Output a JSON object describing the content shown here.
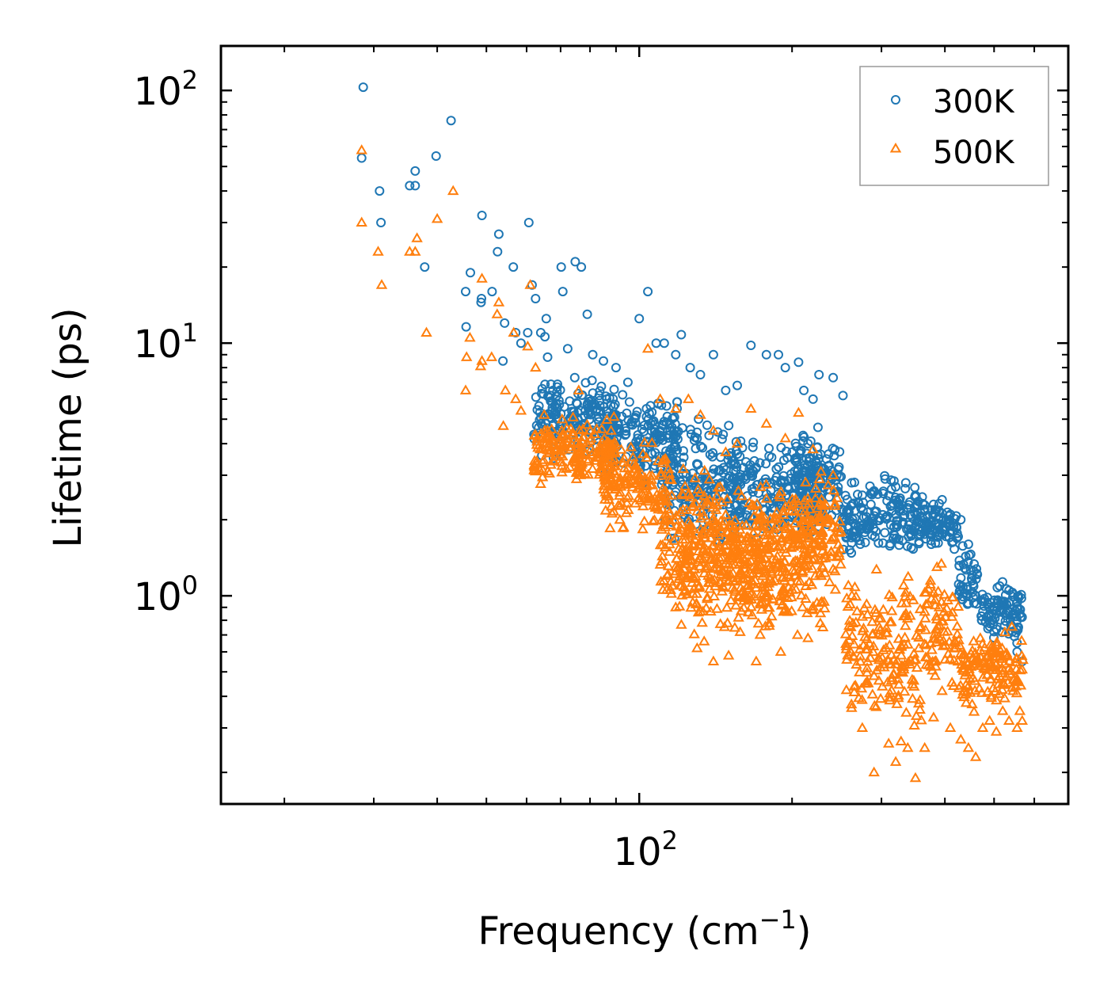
{
  "chart_data": {
    "type": "scatter",
    "xscale": "log",
    "yscale": "log",
    "xlabel": "Frequency (cm",
    "xlabel_sup": "−1",
    "xlabel_close": ")",
    "ylabel": "Lifetime (ps)",
    "xlim": [
      15,
      700
    ],
    "ylim": [
      0.15,
      150
    ],
    "xticks": [
      {
        "value": 100,
        "base": "10",
        "exp": "2"
      }
    ],
    "yticks": [
      {
        "value": 1,
        "base": "10",
        "exp": "0"
      },
      {
        "value": 10,
        "base": "10",
        "exp": "1"
      },
      {
        "value": 100,
        "base": "10",
        "exp": "2"
      }
    ],
    "legend_position": "top-right",
    "series": [
      {
        "name": "300K",
        "marker": "circle",
        "color": "#1f77b4",
        "points": [
          [
            28.6,
            103
          ],
          [
            28.4,
            54
          ],
          [
            30.8,
            40
          ],
          [
            31,
            30
          ],
          [
            35.3,
            42
          ],
          [
            36.2,
            42
          ],
          [
            36.2,
            48
          ],
          [
            37.8,
            20
          ],
          [
            39.8,
            55
          ],
          [
            42.6,
            76
          ],
          [
            45.5,
            16
          ],
          [
            45.6,
            11.6
          ],
          [
            46.5,
            19
          ],
          [
            48.8,
            14.5
          ],
          [
            48.9,
            15
          ],
          [
            49,
            32
          ],
          [
            51.3,
            16
          ],
          [
            52.6,
            23
          ],
          [
            52.9,
            27
          ],
          [
            53.9,
            8.5
          ],
          [
            54.3,
            12
          ],
          [
            56.5,
            20
          ],
          [
            57.1,
            11
          ],
          [
            58.5,
            10
          ],
          [
            60.3,
            11
          ],
          [
            60.6,
            30
          ],
          [
            61.5,
            17
          ],
          [
            62.5,
            15
          ],
          [
            64,
            11
          ],
          [
            65.2,
            10.6
          ],
          [
            65.6,
            12.5
          ],
          [
            66,
            8.8
          ],
          [
            67.6,
            6.5
          ],
          [
            70.2,
            20
          ],
          [
            70.7,
            16
          ],
          [
            72.3,
            9.5
          ],
          [
            74.8,
            21
          ],
          [
            76.9,
            20
          ],
          [
            79,
            13
          ],
          [
            81,
            9
          ],
          [
            85,
            8.5
          ],
          [
            90,
            8
          ],
          [
            95,
            7
          ],
          [
            100,
            12.5
          ],
          [
            104,
            16
          ],
          [
            108,
            10
          ],
          [
            112,
            10
          ],
          [
            118,
            9
          ],
          [
            121,
            10.8
          ],
          [
            126,
            8
          ],
          [
            132,
            7.5
          ],
          [
            140,
            9
          ],
          [
            148,
            6.5
          ],
          [
            156,
            6.8
          ],
          [
            166,
            9.8
          ],
          [
            178,
            9
          ],
          [
            188,
            9
          ],
          [
            194,
            8
          ],
          [
            206,
            8.4
          ],
          [
            211,
            6.5
          ],
          [
            220,
            6
          ],
          [
            226,
            7.5
          ],
          [
            241,
            7.3
          ],
          [
            252,
            6.2
          ],
          [
            90,
            5.2
          ],
          [
            110,
            4.5
          ],
          [
            130,
            4.2
          ],
          [
            150,
            3.6
          ],
          [
            170,
            3.2
          ],
          [
            190,
            2.8
          ],
          [
            215,
            4
          ],
          [
            230,
            3.2
          ],
          [
            245,
            3
          ],
          [
            262,
            2.8
          ],
          [
            275,
            2.5
          ],
          [
            290,
            2.6
          ],
          [
            305,
            2.9
          ],
          [
            320,
            2.7
          ],
          [
            335,
            2.8
          ],
          [
            350,
            2.5
          ],
          [
            365,
            2.2
          ],
          [
            380,
            2.3
          ],
          [
            395,
            2.4
          ],
          [
            410,
            2.1
          ],
          [
            430,
            2.0
          ],
          [
            445,
            1.6
          ],
          [
            460,
            1.0
          ],
          [
            475,
            0.95
          ],
          [
            490,
            0.9
          ],
          [
            505,
            0.85
          ],
          [
            520,
            0.95
          ],
          [
            535,
            1.05
          ],
          [
            545,
            0.75
          ],
          [
            555,
            0.6
          ],
          [
            562,
            0.85
          ],
          [
            568,
            0.55
          ]
        ],
        "bands": [
          {
            "x": [
              62,
              90
            ],
            "y": [
              3.2,
              8
            ]
          },
          {
            "x": [
              85,
              120
            ],
            "y": [
              2.6,
              7
            ]
          },
          {
            "x": [
              110,
              160
            ],
            "y": [
              1.4,
              5.5
            ]
          },
          {
            "x": [
              150,
              230
            ],
            "y": [
              1.3,
              4.8
            ]
          },
          {
            "x": [
              200,
              250
            ],
            "y": [
              1.6,
              5
            ]
          },
          {
            "x": [
              250,
              365
            ],
            "y": [
              1.3,
              3.2
            ]
          },
          {
            "x": [
              365,
              425
            ],
            "y": [
              1.4,
              2.6
            ]
          },
          {
            "x": [
              425,
              465
            ],
            "y": [
              0.7,
              1.8
            ]
          },
          {
            "x": [
              470,
              570
            ],
            "y": [
              0.6,
              1.25
            ]
          }
        ]
      },
      {
        "name": "500K",
        "marker": "triangle",
        "color": "#ff7f0e",
        "points": [
          [
            28.4,
            58
          ],
          [
            28.4,
            30
          ],
          [
            30.6,
            23
          ],
          [
            31.1,
            17
          ],
          [
            35.3,
            23
          ],
          [
            36.2,
            23
          ],
          [
            36.5,
            26
          ],
          [
            38.1,
            11
          ],
          [
            40,
            31
          ],
          [
            43,
            40
          ],
          [
            45.5,
            6.5
          ],
          [
            45.7,
            8.8
          ],
          [
            46.4,
            10.5
          ],
          [
            48.7,
            8.1
          ],
          [
            49,
            8.5
          ],
          [
            49,
            18
          ],
          [
            51.2,
            8.8
          ],
          [
            52.5,
            13
          ],
          [
            52.9,
            14.5
          ],
          [
            54,
            4.7
          ],
          [
            54.5,
            6.5
          ],
          [
            56.6,
            11
          ],
          [
            57.1,
            6
          ],
          [
            58.5,
            5.4
          ],
          [
            60.3,
            9.7
          ],
          [
            61,
            17
          ],
          [
            62.5,
            8
          ],
          [
            65,
            5.2
          ],
          [
            66,
            4.5
          ],
          [
            68,
            3.4
          ],
          [
            72,
            4.6
          ],
          [
            76,
            6.5
          ],
          [
            80,
            4.5
          ],
          [
            88,
            4.5
          ],
          [
            95,
            3.2
          ],
          [
            100,
            3.0
          ],
          [
            104,
            9.5
          ],
          [
            110,
            6
          ],
          [
            118,
            5.5
          ],
          [
            125,
            6
          ],
          [
            132,
            5.2
          ],
          [
            140,
            4.5
          ],
          [
            148,
            3.7
          ],
          [
            156,
            4
          ],
          [
            166,
            5.5
          ],
          [
            178,
            4.8
          ],
          [
            194,
            4.2
          ],
          [
            206,
            5.3
          ],
          [
            220,
            3.8
          ],
          [
            228,
            3.1
          ],
          [
            241,
            3
          ],
          [
            118,
            0.9
          ],
          [
            130,
            0.62
          ],
          [
            140,
            0.55
          ],
          [
            150,
            0.58
          ],
          [
            170,
            0.55
          ],
          [
            190,
            0.6
          ],
          [
            205,
            0.7
          ],
          [
            215,
            0.68
          ],
          [
            230,
            0.75
          ],
          [
            262,
            0.36
          ],
          [
            275,
            0.3
          ],
          [
            290,
            0.2
          ],
          [
            310,
            0.26
          ],
          [
            320,
            0.22
          ],
          [
            338,
            0.25
          ],
          [
            350,
            0.19
          ],
          [
            365,
            0.25
          ],
          [
            380,
            0.33
          ],
          [
            395,
            0.42
          ],
          [
            410,
            0.3
          ],
          [
            430,
            0.27
          ],
          [
            445,
            0.25
          ],
          [
            460,
            0.23
          ],
          [
            475,
            0.3
          ],
          [
            490,
            0.32
          ],
          [
            505,
            0.29
          ],
          [
            520,
            0.35
          ],
          [
            535,
            0.32
          ],
          [
            545,
            0.42
          ],
          [
            555,
            0.3
          ],
          [
            562,
            0.35
          ],
          [
            568,
            0.32
          ]
        ],
        "bands": [
          {
            "x": [
              62,
              90
            ],
            "y": [
              2.5,
              5.5
            ]
          },
          {
            "x": [
              85,
              115
            ],
            "y": [
              1.6,
              4.5
            ]
          },
          {
            "x": [
              110,
              150
            ],
            "y": [
              0.7,
              4
            ]
          },
          {
            "x": [
              120,
              200
            ],
            "y": [
              0.55,
              3
            ]
          },
          {
            "x": [
              150,
              230
            ],
            "y": [
              0.6,
              3.5
            ]
          },
          {
            "x": [
              200,
              250
            ],
            "y": [
              0.8,
              3.7
            ]
          },
          {
            "x": [
              255,
              300
            ],
            "y": [
              0.26,
              1.5
            ]
          },
          {
            "x": [
              300,
              365
            ],
            "y": [
              0.22,
              1.6
            ]
          },
          {
            "x": [
              365,
              425
            ],
            "y": [
              0.35,
              1.5
            ]
          },
          {
            "x": [
              425,
              475
            ],
            "y": [
              0.3,
              0.85
            ]
          },
          {
            "x": [
              475,
              570
            ],
            "y": [
              0.32,
              0.8
            ]
          }
        ]
      }
    ]
  }
}
